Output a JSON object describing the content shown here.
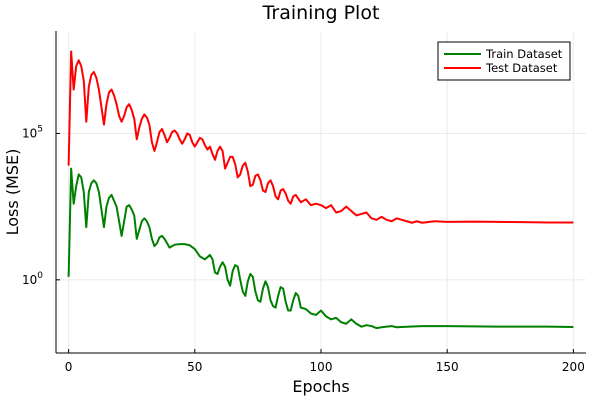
{
  "chart_data": {
    "type": "line",
    "title": "Training Plot",
    "xlabel": "Epochs",
    "ylabel": "Loss (MSE)",
    "y_scale": "log10",
    "xlim": [
      -5,
      205
    ],
    "ylim_log10": [
      -2.5,
      8.5
    ],
    "x_ticks": [
      {
        "value": 0,
        "label": "0"
      },
      {
        "value": 50,
        "label": "50"
      },
      {
        "value": 100,
        "label": "100"
      },
      {
        "value": 150,
        "label": "150"
      },
      {
        "value": 200,
        "label": "200"
      }
    ],
    "y_ticks": [
      {
        "log10": 0,
        "base": "10",
        "exp": "0"
      },
      {
        "log10": 5,
        "base": "10",
        "exp": "5"
      }
    ],
    "grid": true,
    "legend": {
      "position": "top-right"
    },
    "series": [
      {
        "name": "Train Dataset",
        "color": "#008000",
        "x": [
          0,
          1,
          2,
          3,
          4,
          5,
          6,
          7,
          8,
          9,
          10,
          11,
          12,
          13,
          14,
          15,
          16,
          17,
          18,
          19,
          20,
          21,
          22,
          23,
          24,
          25,
          26,
          27,
          28,
          29,
          30,
          31,
          32,
          33,
          34,
          35,
          36,
          37,
          38,
          39,
          40,
          42,
          44,
          46,
          48,
          50,
          52,
          54,
          56,
          57,
          58,
          59,
          60,
          61,
          62,
          63,
          64,
          65,
          66,
          67,
          68,
          69,
          70,
          71,
          72,
          73,
          74,
          75,
          76,
          77,
          78,
          79,
          80,
          81,
          82,
          83,
          84,
          85,
          86,
          87,
          88,
          89,
          90,
          91,
          92,
          94,
          96,
          98,
          100,
          102,
          104,
          106,
          108,
          110,
          112,
          114,
          116,
          118,
          120,
          122,
          124,
          126,
          128,
          130,
          135,
          140,
          150,
          160,
          170,
          180,
          190,
          200
        ],
        "log10_values": [
          0.1,
          3.8,
          2.6,
          3.2,
          3.6,
          3.5,
          3.0,
          1.8,
          3.0,
          3.3,
          3.4,
          3.3,
          3.0,
          2.4,
          1.8,
          2.5,
          2.8,
          2.9,
          2.7,
          2.5,
          2.0,
          1.5,
          2.0,
          2.5,
          2.55,
          2.4,
          2.2,
          1.4,
          1.7,
          2.0,
          2.1,
          2.0,
          1.8,
          1.4,
          1.15,
          1.25,
          1.45,
          1.5,
          1.4,
          1.25,
          1.1,
          1.2,
          1.22,
          1.22,
          1.18,
          1.05,
          0.8,
          0.7,
          0.85,
          0.7,
          0.25,
          0.2,
          0.45,
          0.6,
          0.45,
          0.0,
          -0.2,
          0.3,
          0.5,
          0.45,
          0.0,
          -0.4,
          -0.55,
          -0.05,
          0.2,
          0.1,
          -0.4,
          -0.7,
          -0.75,
          -0.3,
          -0.05,
          -0.25,
          -0.7,
          -0.9,
          -0.95,
          -0.55,
          -0.25,
          -0.3,
          -0.75,
          -1.05,
          -1.05,
          -0.7,
          -0.45,
          -0.55,
          -0.95,
          -1.0,
          -1.15,
          -1.2,
          -1.05,
          -1.25,
          -1.35,
          -1.3,
          -1.45,
          -1.5,
          -1.35,
          -1.5,
          -1.6,
          -1.55,
          -1.58,
          -1.65,
          -1.62,
          -1.6,
          -1.58,
          -1.62,
          -1.6,
          -1.58,
          -1.58,
          -1.59,
          -1.6,
          -1.6,
          -1.6,
          -1.61
        ]
      },
      {
        "name": "Test Dataset",
        "color": "#ff0000",
        "x": [
          0,
          1,
          2,
          3,
          4,
          5,
          6,
          7,
          8,
          9,
          10,
          11,
          12,
          13,
          14,
          15,
          16,
          17,
          18,
          19,
          20,
          21,
          22,
          23,
          24,
          25,
          26,
          27,
          28,
          29,
          30,
          31,
          32,
          33,
          34,
          35,
          36,
          37,
          38,
          39,
          40,
          41,
          42,
          43,
          44,
          45,
          46,
          47,
          48,
          49,
          50,
          51,
          52,
          53,
          54,
          55,
          56,
          57,
          58,
          59,
          60,
          61,
          62,
          63,
          64,
          65,
          66,
          67,
          68,
          69,
          70,
          71,
          72,
          73,
          74,
          75,
          76,
          77,
          78,
          79,
          80,
          81,
          82,
          83,
          84,
          85,
          86,
          87,
          88,
          89,
          90,
          92,
          94,
          96,
          98,
          100,
          102,
          104,
          106,
          108,
          110,
          112,
          114,
          116,
          118,
          120,
          122,
          124,
          126,
          128,
          130,
          132,
          134,
          136,
          138,
          140,
          145,
          150,
          160,
          170,
          180,
          190,
          200
        ],
        "log10_values": [
          3.9,
          7.8,
          6.5,
          7.3,
          7.5,
          7.3,
          6.8,
          5.4,
          6.6,
          7.0,
          7.1,
          6.9,
          6.5,
          5.9,
          5.3,
          6.0,
          6.4,
          6.5,
          6.3,
          6.0,
          5.6,
          5.4,
          5.6,
          5.9,
          6.0,
          5.8,
          5.5,
          4.8,
          5.2,
          5.5,
          5.65,
          5.55,
          5.3,
          4.7,
          4.4,
          4.7,
          5.05,
          5.15,
          4.95,
          4.7,
          4.85,
          5.05,
          5.1,
          5.0,
          4.8,
          4.65,
          4.8,
          5.0,
          4.95,
          4.7,
          4.55,
          4.7,
          4.85,
          4.8,
          4.6,
          4.45,
          4.55,
          4.3,
          4.1,
          4.4,
          4.55,
          4.4,
          3.8,
          4.0,
          4.2,
          4.2,
          3.95,
          3.5,
          3.6,
          3.9,
          4.0,
          3.7,
          3.2,
          3.25,
          3.55,
          3.6,
          3.4,
          3.05,
          3.0,
          3.3,
          3.4,
          3.2,
          2.85,
          2.75,
          3.05,
          3.1,
          2.95,
          2.7,
          2.6,
          2.85,
          2.9,
          2.65,
          2.75,
          2.55,
          2.6,
          2.55,
          2.45,
          2.55,
          2.3,
          2.35,
          2.5,
          2.35,
          2.2,
          2.25,
          2.3,
          2.1,
          2.05,
          2.15,
          2.05,
          2.0,
          2.1,
          2.05,
          2.0,
          1.95,
          2.0,
          1.95,
          2.0,
          1.98,
          1.99,
          1.98,
          1.97,
          1.96,
          1.96
        ]
      }
    ]
  }
}
